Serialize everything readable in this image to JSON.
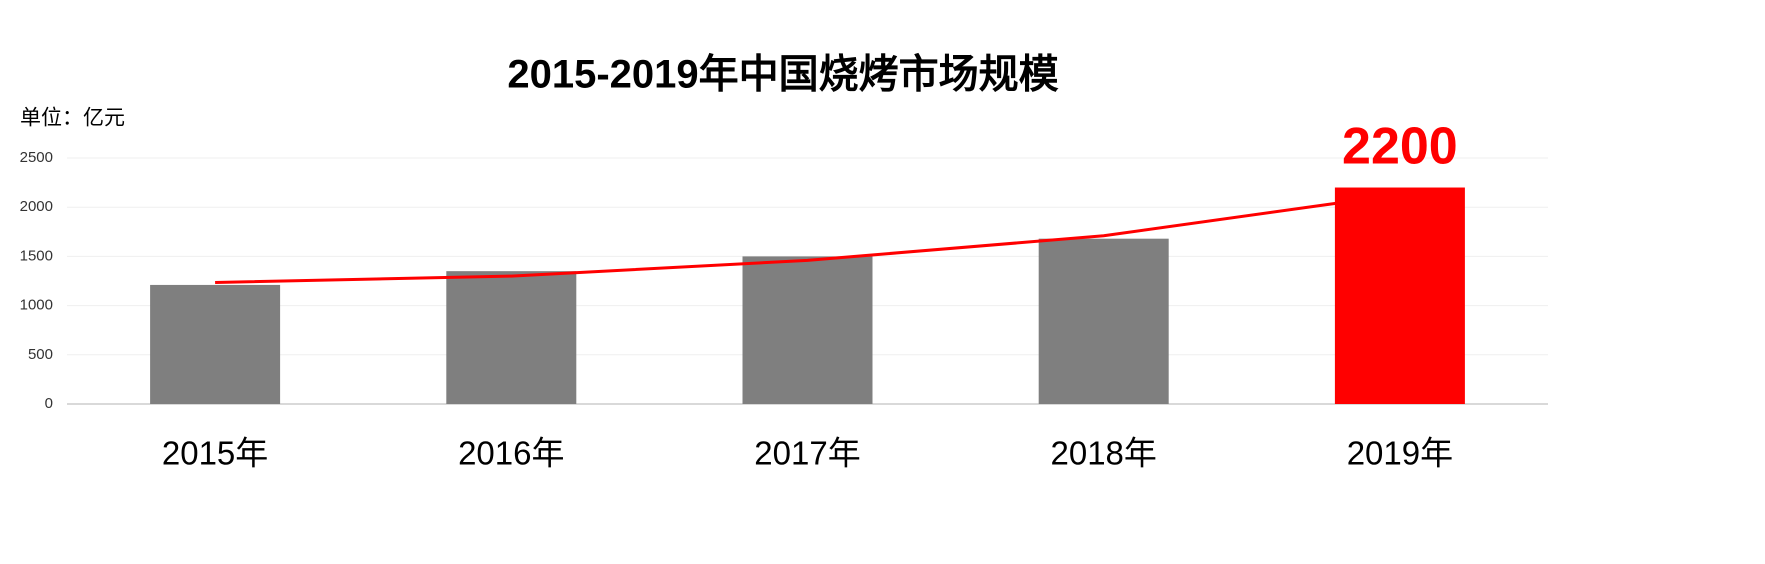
{
  "chart_data": {
    "type": "bar",
    "title": "2015-2019年中国烧烤市场规模",
    "y_label": "单位：亿元",
    "categories": [
      "2015年",
      "2016年",
      "2017年",
      "2018年",
      "2019年"
    ],
    "values": [
      1210,
      1350,
      1500,
      1680,
      2200
    ],
    "colors": [
      "#7f7f7f",
      "#7f7f7f",
      "#7f7f7f",
      "#7f7f7f",
      "#ff0000"
    ],
    "labeled_index": 4,
    "trend": {
      "type": "line",
      "color": "#ff0000",
      "values": [
        1235,
        1300,
        1460,
        1710,
        2130
      ]
    },
    "ylim": [
      0,
      2500
    ],
    "yticks": [
      0,
      500,
      1000,
      1500,
      2000,
      2500
    ],
    "grid": true
  }
}
